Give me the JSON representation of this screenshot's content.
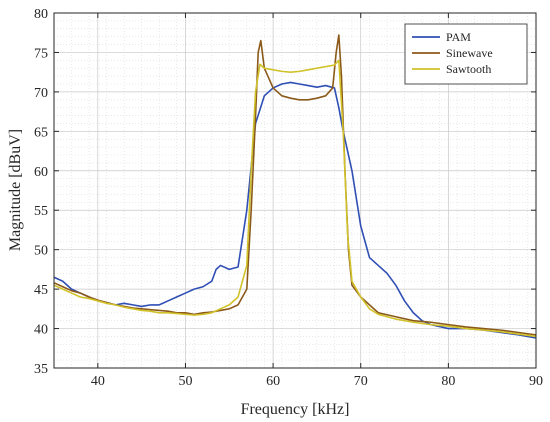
{
  "chart_data": {
    "type": "line",
    "xlabel": "Frequency [kHz]",
    "ylabel": "Magnitude [dBuV]",
    "xlim": [
      35,
      90
    ],
    "ylim": [
      35,
      80
    ],
    "xticks": [
      "40",
      "50",
      "60",
      "70",
      "80",
      "90"
    ],
    "yticks": [
      "35",
      "40",
      "45",
      "50",
      "55",
      "60",
      "65",
      "70",
      "75",
      "80"
    ],
    "grid": true,
    "minor_grid": true,
    "legend_position": "top-right",
    "series": [
      {
        "name": "PAM",
        "color": "#2f4fb5",
        "points": [
          [
            35,
            46.5
          ],
          [
            36,
            46
          ],
          [
            37,
            45
          ],
          [
            38,
            44.5
          ],
          [
            39,
            44
          ],
          [
            40,
            43.5
          ],
          [
            41,
            43.3
          ],
          [
            42,
            43
          ],
          [
            43,
            43.2
          ],
          [
            44,
            43
          ],
          [
            45,
            42.8
          ],
          [
            46,
            43
          ],
          [
            47,
            43
          ],
          [
            48,
            43.5
          ],
          [
            49,
            44
          ],
          [
            50,
            44.5
          ],
          [
            51,
            45
          ],
          [
            52,
            45.3
          ],
          [
            53,
            46
          ],
          [
            53.5,
            47.5
          ],
          [
            54,
            48
          ],
          [
            55,
            47.5
          ],
          [
            56,
            47.8
          ],
          [
            57,
            55
          ],
          [
            58,
            66
          ],
          [
            59,
            69.5
          ],
          [
            60,
            70.5
          ],
          [
            61,
            71
          ],
          [
            62,
            71.2
          ],
          [
            63,
            71
          ],
          [
            64,
            70.8
          ],
          [
            65,
            70.6
          ],
          [
            66,
            70.8
          ],
          [
            67,
            70.5
          ],
          [
            67.5,
            68
          ],
          [
            68,
            65
          ],
          [
            69,
            60
          ],
          [
            70,
            53
          ],
          [
            71,
            49
          ],
          [
            72,
            48
          ],
          [
            73,
            47
          ],
          [
            74,
            45.5
          ],
          [
            75,
            43.5
          ],
          [
            76,
            42
          ],
          [
            77,
            41
          ],
          [
            78,
            40.5
          ],
          [
            80,
            40
          ],
          [
            82,
            40
          ],
          [
            84,
            39.8
          ],
          [
            86,
            39.5
          ],
          [
            88,
            39.2
          ],
          [
            90,
            38.8
          ]
        ]
      },
      {
        "name": "Sinewave",
        "color": "#8b5a1a",
        "points": [
          [
            35,
            45.8
          ],
          [
            36,
            45.3
          ],
          [
            37,
            44.8
          ],
          [
            38,
            44.5
          ],
          [
            39,
            44
          ],
          [
            40,
            43.6
          ],
          [
            41,
            43.3
          ],
          [
            42,
            43
          ],
          [
            43,
            42.8
          ],
          [
            44,
            42.6
          ],
          [
            45,
            42.5
          ],
          [
            46,
            42.4
          ],
          [
            47,
            42.3
          ],
          [
            48,
            42.2
          ],
          [
            49,
            42
          ],
          [
            50,
            42
          ],
          [
            51,
            41.8
          ],
          [
            52,
            42
          ],
          [
            53,
            42.1
          ],
          [
            54,
            42.3
          ],
          [
            55,
            42.5
          ],
          [
            56,
            43
          ],
          [
            57,
            45
          ],
          [
            57.5,
            55
          ],
          [
            58,
            67
          ],
          [
            58.3,
            75
          ],
          [
            58.6,
            76.5
          ],
          [
            59,
            73
          ],
          [
            60,
            70.5
          ],
          [
            61,
            69.5
          ],
          [
            62,
            69.2
          ],
          [
            63,
            69
          ],
          [
            64,
            69
          ],
          [
            65,
            69.2
          ],
          [
            66,
            69.5
          ],
          [
            66.8,
            70.5
          ],
          [
            67.2,
            75
          ],
          [
            67.5,
            77.2
          ],
          [
            67.8,
            72
          ],
          [
            68.2,
            60
          ],
          [
            68.6,
            50
          ],
          [
            69,
            45.5
          ],
          [
            70,
            44
          ],
          [
            71,
            43
          ],
          [
            72,
            42
          ],
          [
            74,
            41.5
          ],
          [
            76,
            41
          ],
          [
            78,
            40.8
          ],
          [
            80,
            40.5
          ],
          [
            82,
            40.2
          ],
          [
            84,
            40
          ],
          [
            86,
            39.8
          ],
          [
            88,
            39.5
          ],
          [
            90,
            39.2
          ]
        ]
      },
      {
        "name": "Sawtooth",
        "color": "#d1c22a",
        "points": [
          [
            35,
            45.5
          ],
          [
            36,
            45
          ],
          [
            37,
            44.5
          ],
          [
            38,
            44
          ],
          [
            39,
            43.8
          ],
          [
            40,
            43.5
          ],
          [
            41,
            43.2
          ],
          [
            42,
            43
          ],
          [
            43,
            42.7
          ],
          [
            44,
            42.5
          ],
          [
            45,
            42.3
          ],
          [
            46,
            42.2
          ],
          [
            47,
            42
          ],
          [
            48,
            42
          ],
          [
            49,
            41.9
          ],
          [
            50,
            41.8
          ],
          [
            51,
            41.7
          ],
          [
            52,
            41.8
          ],
          [
            53,
            42
          ],
          [
            54,
            42.5
          ],
          [
            55,
            43
          ],
          [
            56,
            44
          ],
          [
            57,
            48
          ],
          [
            57.5,
            60
          ],
          [
            58,
            70
          ],
          [
            58.5,
            73.5
          ],
          [
            59,
            73
          ],
          [
            60,
            72.8
          ],
          [
            61,
            72.6
          ],
          [
            62,
            72.5
          ],
          [
            63,
            72.6
          ],
          [
            64,
            72.8
          ],
          [
            65,
            73
          ],
          [
            66,
            73.2
          ],
          [
            67,
            73.4
          ],
          [
            67.5,
            74
          ],
          [
            68,
            65
          ],
          [
            68.5,
            52
          ],
          [
            69,
            46
          ],
          [
            70,
            44
          ],
          [
            71,
            42.5
          ],
          [
            72,
            41.8
          ],
          [
            74,
            41.2
          ],
          [
            76,
            40.8
          ],
          [
            78,
            40.5
          ],
          [
            80,
            40.3
          ],
          [
            82,
            40
          ],
          [
            84,
            39.8
          ],
          [
            86,
            39.6
          ],
          [
            88,
            39.3
          ],
          [
            90,
            39
          ]
        ]
      }
    ]
  }
}
